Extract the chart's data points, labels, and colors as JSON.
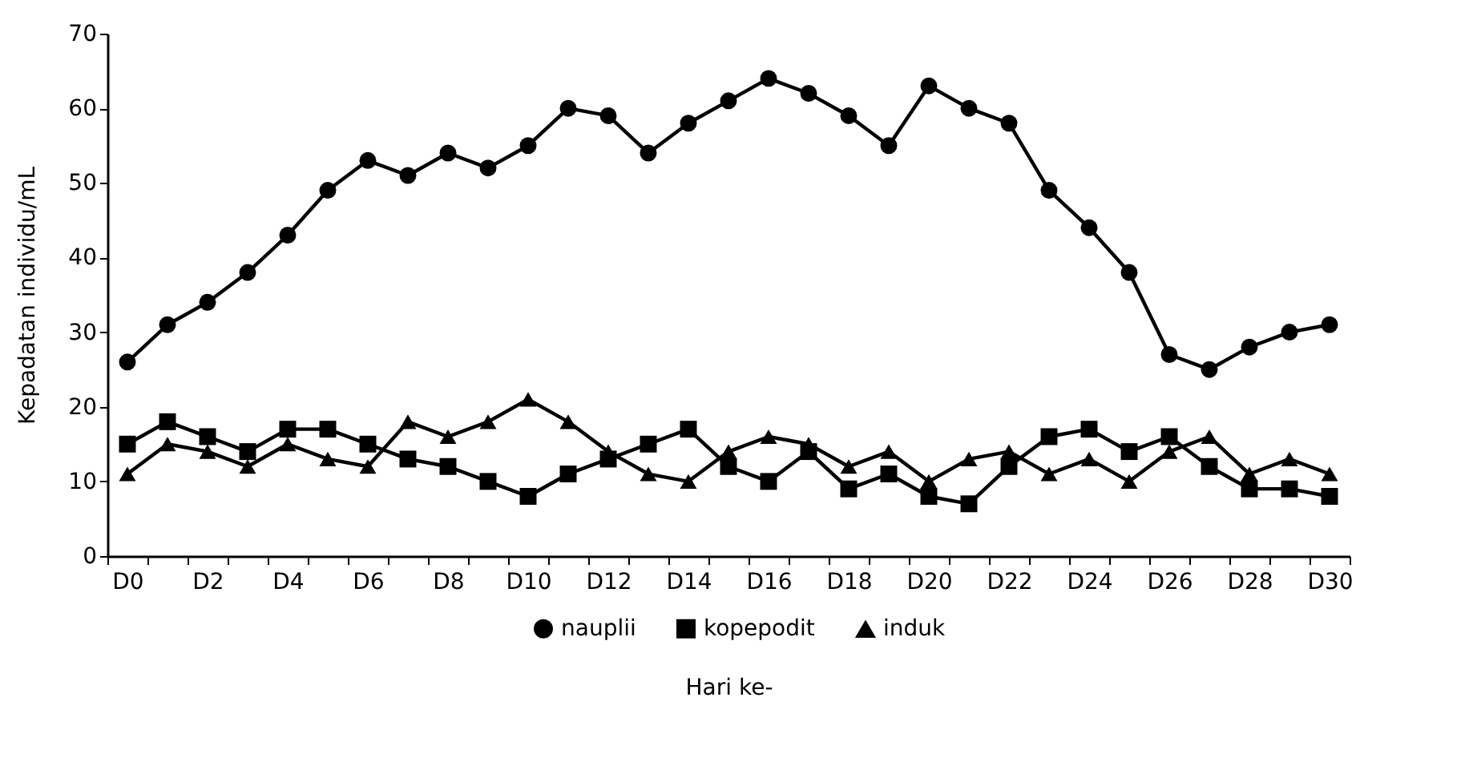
{
  "chart_data": {
    "type": "line",
    "xlabel": "Hari ke-",
    "ylabel": "Kepadatan individu/mL",
    "categories": [
      "D0",
      null,
      "D2",
      null,
      "D4",
      null,
      "D6",
      null,
      "D8",
      null,
      "D10",
      null,
      "D12",
      null,
      "D14",
      null,
      "D16",
      null,
      "D18",
      null,
      "D20",
      null,
      "D22",
      null,
      "D24",
      null,
      "D26",
      null,
      "D28",
      null,
      "D30"
    ],
    "series": [
      {
        "name": "nauplii",
        "color": "#000000",
        "marker": "circle",
        "values": [
          26,
          31,
          34,
          38,
          43,
          49,
          53,
          51,
          54,
          52,
          55,
          60,
          59,
          54,
          58,
          61,
          64,
          62,
          59,
          55,
          63,
          60,
          58,
          49,
          44,
          38,
          27,
          25,
          28,
          30,
          31
        ]
      },
      {
        "name": "kopepodit",
        "color": "#000000",
        "marker": "square",
        "values": [
          15,
          18,
          16,
          14,
          17,
          17,
          15,
          13,
          12,
          10,
          8,
          11,
          13,
          15,
          17,
          12,
          10,
          14,
          9,
          11,
          8,
          7,
          12,
          16,
          17,
          14,
          16,
          12,
          9,
          9,
          8
        ]
      },
      {
        "name": "induk",
        "color": "#000000",
        "marker": "triangle",
        "values": [
          11,
          15,
          14,
          12,
          15,
          13,
          12,
          18,
          16,
          18,
          21,
          18,
          14,
          11,
          10,
          14,
          16,
          15,
          12,
          14,
          10,
          13,
          14,
          11,
          13,
          10,
          14,
          16,
          11,
          13,
          11
        ]
      }
    ],
    "ylim": [
      0,
      70
    ],
    "yticks": [
      0,
      10,
      20,
      30,
      40,
      50,
      60,
      70
    ],
    "grid": false,
    "legend": "bottom",
    "line_style": "solid"
  }
}
